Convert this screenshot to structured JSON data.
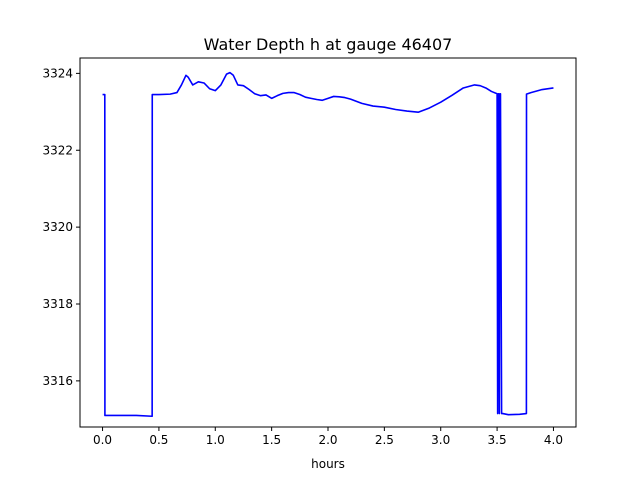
{
  "chart_data": {
    "type": "line",
    "title": "Water Depth h at gauge 46407",
    "xlabel": "hours",
    "ylabel": "",
    "xlim": [
      -0.2,
      4.2
    ],
    "ylim": [
      3314.8,
      3324.4
    ],
    "xticks": [
      0.0,
      0.5,
      1.0,
      1.5,
      2.0,
      2.5,
      3.0,
      3.5,
      4.0
    ],
    "xtick_labels": [
      "0.0",
      "0.5",
      "1.0",
      "1.5",
      "2.0",
      "2.5",
      "3.0",
      "3.5",
      "4.0"
    ],
    "yticks": [
      3316,
      3318,
      3320,
      3322,
      3324
    ],
    "ytick_labels": [
      "3316",
      "3318",
      "3320",
      "3322",
      "3324"
    ],
    "grid": false,
    "series": [
      {
        "color": "#0000ff",
        "x": [
          0.0,
          0.02,
          0.021,
          0.1,
          0.3,
          0.44,
          0.441,
          0.5,
          0.6,
          0.66,
          0.7,
          0.74,
          0.76,
          0.8,
          0.85,
          0.9,
          0.95,
          1.0,
          1.05,
          1.1,
          1.13,
          1.16,
          1.2,
          1.25,
          1.3,
          1.35,
          1.4,
          1.45,
          1.5,
          1.55,
          1.6,
          1.65,
          1.7,
          1.75,
          1.8,
          1.85,
          1.9,
          1.95,
          2.0,
          2.05,
          2.1,
          2.15,
          2.2,
          2.3,
          2.4,
          2.5,
          2.6,
          2.7,
          2.8,
          2.9,
          3.0,
          3.1,
          3.2,
          3.3,
          3.35,
          3.4,
          3.45,
          3.5,
          3.505,
          3.51,
          3.515,
          3.52,
          3.525,
          3.53,
          3.54,
          3.55,
          3.551,
          3.6,
          3.7,
          3.76,
          3.761,
          3.8,
          3.9,
          4.0
        ],
        "y": [
          3323.45,
          3323.45,
          3315.1,
          3315.1,
          3315.1,
          3315.08,
          3323.45,
          3323.45,
          3323.46,
          3323.5,
          3323.7,
          3323.95,
          3323.9,
          3323.7,
          3323.78,
          3323.75,
          3323.6,
          3323.55,
          3323.7,
          3323.98,
          3324.02,
          3323.95,
          3323.7,
          3323.68,
          3323.58,
          3323.47,
          3323.42,
          3323.44,
          3323.35,
          3323.42,
          3323.48,
          3323.5,
          3323.5,
          3323.45,
          3323.38,
          3323.35,
          3323.32,
          3323.3,
          3323.35,
          3323.4,
          3323.39,
          3323.37,
          3323.33,
          3323.22,
          3323.15,
          3323.12,
          3323.06,
          3323.02,
          3322.99,
          3323.1,
          3323.25,
          3323.43,
          3323.62,
          3323.7,
          3323.68,
          3323.62,
          3323.53,
          3323.47,
          3315.15,
          3323.47,
          3323.47,
          3315.15,
          3323.47,
          3323.47,
          3315.15,
          3315.15,
          3315.15,
          3315.12,
          3315.13,
          3315.15,
          3323.46,
          3323.5,
          3323.58,
          3323.62
        ]
      }
    ]
  }
}
